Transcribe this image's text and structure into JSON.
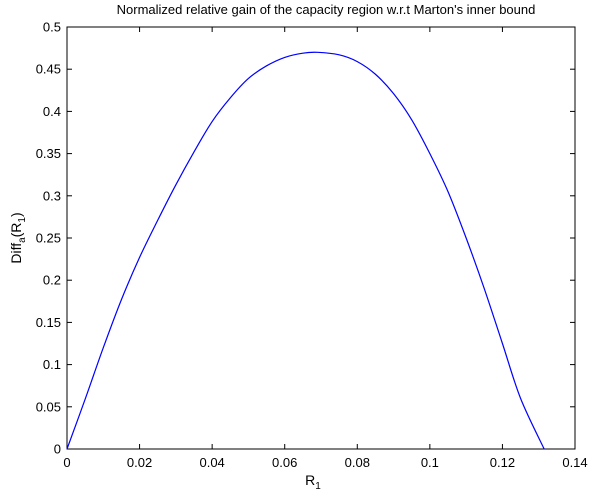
{
  "chart_data": {
    "type": "line",
    "title": "Normalized relative gain of the capacity region w.r.t Marton's inner bound",
    "xlabel": {
      "main": "R",
      "sub": "1"
    },
    "ylabel": {
      "part1": "Diff",
      "sub1": "a",
      "part2": "(R",
      "sub2": "1",
      "part3": ")"
    },
    "xlim": [
      0,
      0.14
    ],
    "ylim": [
      0,
      0.5
    ],
    "xticks": [
      0,
      0.02,
      0.04,
      0.06,
      0.08,
      0.1,
      0.12,
      0.14
    ],
    "xtick_labels": [
      "0",
      "0.02",
      "0.04",
      "0.06",
      "0.08",
      "0.1",
      "0.12",
      "0.14"
    ],
    "yticks": [
      0,
      0.05,
      0.1,
      0.15,
      0.2,
      0.25,
      0.3,
      0.35,
      0.4,
      0.45,
      0.5
    ],
    "ytick_labels": [
      "0",
      "0.05",
      "0.1",
      "0.15",
      "0.2",
      "0.25",
      "0.3",
      "0.35",
      "0.4",
      "0.45",
      "0.5"
    ],
    "grid": false,
    "line_color": "#0000ff",
    "series": [
      {
        "x": [
          0,
          0.005,
          0.01,
          0.015,
          0.02,
          0.025,
          0.03,
          0.035,
          0.04,
          0.045,
          0.05,
          0.055,
          0.06,
          0.065,
          0.069,
          0.075,
          0.08,
          0.085,
          0.09,
          0.095,
          0.1,
          0.105,
          0.11,
          0.115,
          0.12,
          0.125,
          0.1315
        ],
        "y": [
          0,
          0.059,
          0.12,
          0.177,
          0.227,
          0.271,
          0.313,
          0.352,
          0.388,
          0.416,
          0.439,
          0.454,
          0.464,
          0.469,
          0.47,
          0.467,
          0.459,
          0.444,
          0.421,
          0.39,
          0.35,
          0.305,
          0.25,
          0.19,
          0.125,
          0.06,
          0
        ]
      }
    ]
  }
}
